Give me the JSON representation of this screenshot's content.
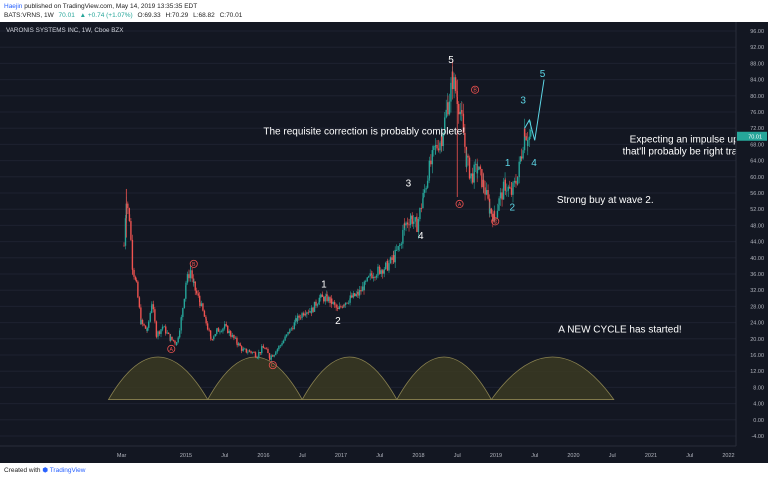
{
  "header": {
    "line1_user": "Haejin",
    "line1_rest": " published on TradingView.com, May 14, 2019 13:35:35 EDT",
    "symbol": "BATS:VRNS, 1W",
    "last": "70.01",
    "change": "▲ +0.74 (+1.07%)",
    "open": "O:69.33",
    "high": "H:70.29",
    "low": "L:68.82",
    "close": "C:70.01"
  },
  "footer": {
    "created_with": "Created with",
    "brand": "TradingView"
  },
  "colors": {
    "background": "#131722",
    "up": "#26a69a",
    "down": "#ef5350",
    "wave_cyan": "#5dd6e6",
    "cycle_fill": "#3b3a22",
    "cycle_stroke": "#8a8250"
  },
  "chart_data": {
    "type": "candlestick",
    "title": "VARONIS SYSTEMS INC, 1W, Cboe BZX",
    "y_ticks": [
      "96.00",
      "92.00",
      "88.00",
      "84.00",
      "80.00",
      "76.00",
      "72.00",
      "68.00",
      "64.00",
      "60.00",
      "56.00",
      "52.00",
      "48.00",
      "44.00",
      "40.00",
      "36.00",
      "32.00",
      "28.00",
      "24.00",
      "20.00",
      "16.00",
      "12.00",
      "8.00",
      "4.00",
      "0.00",
      "-4.00"
    ],
    "ylim": [
      -6,
      98
    ],
    "x_ticks": [
      "Mar",
      "2015",
      "Jul",
      "2016",
      "Jul",
      "2017",
      "Jul",
      "2018",
      "Jul",
      "2019",
      "Jul",
      "2020",
      "Jul",
      "2021",
      "Jul",
      "2022"
    ],
    "last_price": "70.01",
    "price_path": [
      [
        2014.2,
        43
      ],
      [
        2014.23,
        55
      ],
      [
        2014.27,
        50
      ],
      [
        2014.31,
        38
      ],
      [
        2014.36,
        33
      ],
      [
        2014.42,
        24
      ],
      [
        2014.5,
        22
      ],
      [
        2014.56,
        29
      ],
      [
        2014.62,
        21
      ],
      [
        2014.7,
        23
      ],
      [
        2014.8,
        20
      ],
      [
        2014.88,
        19
      ],
      [
        2014.94,
        25
      ],
      [
        2015.0,
        34
      ],
      [
        2015.06,
        37
      ],
      [
        2015.1,
        33
      ],
      [
        2015.18,
        29
      ],
      [
        2015.26,
        24
      ],
      [
        2015.32,
        20
      ],
      [
        2015.4,
        22
      ],
      [
        2015.5,
        23
      ],
      [
        2015.58,
        21
      ],
      [
        2015.66,
        19
      ],
      [
        2015.74,
        17
      ],
      [
        2015.82,
        17
      ],
      [
        2015.92,
        16
      ],
      [
        2016.0,
        18
      ],
      [
        2016.08,
        15.5
      ],
      [
        2016.16,
        17
      ],
      [
        2016.24,
        19
      ],
      [
        2016.34,
        22
      ],
      [
        2016.44,
        25
      ],
      [
        2016.54,
        27
      ],
      [
        2016.62,
        27
      ],
      [
        2016.72,
        30
      ],
      [
        2016.82,
        30
      ],
      [
        2016.88,
        29
      ],
      [
        2016.96,
        27
      ],
      [
        2017.04,
        29
      ],
      [
        2017.12,
        30
      ],
      [
        2017.22,
        31
      ],
      [
        2017.3,
        33
      ],
      [
        2017.4,
        36
      ],
      [
        2017.5,
        37
      ],
      [
        2017.6,
        38
      ],
      [
        2017.68,
        40
      ],
      [
        2017.76,
        43
      ],
      [
        2017.82,
        48
      ],
      [
        2017.9,
        50
      ],
      [
        2017.98,
        48
      ],
      [
        2018.06,
        55
      ],
      [
        2018.14,
        62
      ],
      [
        2018.22,
        67
      ],
      [
        2018.3,
        70
      ],
      [
        2018.38,
        78
      ],
      [
        2018.44,
        84
      ],
      [
        2018.5,
        80
      ],
      [
        2018.56,
        74
      ],
      [
        2018.62,
        64
      ],
      [
        2018.68,
        60
      ],
      [
        2018.76,
        62
      ],
      [
        2018.84,
        58
      ],
      [
        2018.92,
        52
      ],
      [
        2018.98,
        50
      ],
      [
        2019.04,
        54
      ],
      [
        2019.12,
        58
      ],
      [
        2019.2,
        56
      ],
      [
        2019.28,
        60
      ],
      [
        2019.33,
        66
      ],
      [
        2019.37,
        72
      ],
      [
        2019.41,
        69
      ],
      [
        2019.45,
        70
      ]
    ],
    "wave_labels": [
      {
        "label": "1",
        "x": 2016.78,
        "y": 33.5,
        "color": "white"
      },
      {
        "label": "2",
        "x": 2016.96,
        "y": 24.5,
        "color": "white"
      },
      {
        "label": "3",
        "x": 2017.87,
        "y": 58.5,
        "color": "white"
      },
      {
        "label": "4",
        "x": 2018.03,
        "y": 45.5,
        "color": "white"
      },
      {
        "label": "5",
        "x": 2018.42,
        "y": 89,
        "color": "white"
      },
      {
        "label": "A",
        "x": 2014.81,
        "y": 17.5,
        "color": "red"
      },
      {
        "label": "B",
        "x": 2015.1,
        "y": 38.5,
        "color": "red"
      },
      {
        "label": "C",
        "x": 2016.12,
        "y": 13.5,
        "color": "red"
      },
      {
        "label": "A",
        "x": 2018.53,
        "y": 53.3,
        "color": "red"
      },
      {
        "label": "B",
        "x": 2018.73,
        "y": 81.5,
        "color": "red"
      },
      {
        "label": "C",
        "x": 2018.99,
        "y": 49,
        "color": "red"
      },
      {
        "label": "1",
        "x": 2019.15,
        "y": 63.5,
        "color": "cyan"
      },
      {
        "label": "2",
        "x": 2019.21,
        "y": 52.5,
        "color": "cyan"
      },
      {
        "label": "3",
        "x": 2019.35,
        "y": 79,
        "color": "cyan"
      },
      {
        "label": "4",
        "x": 2019.49,
        "y": 63.5,
        "color": "cyan"
      },
      {
        "label": "5",
        "x": 2019.6,
        "y": 85.5,
        "color": "cyan"
      }
    ],
    "projection": [
      [
        2019.37,
        72
      ],
      [
        2019.43,
        74
      ],
      [
        2019.5,
        69
      ],
      [
        2019.62,
        84
      ]
    ],
    "cycle_arcs": [
      [
        2014.0,
        2015.28
      ],
      [
        2015.28,
        2016.5
      ],
      [
        2016.5,
        2017.72
      ],
      [
        2017.72,
        2018.94
      ],
      [
        2018.94,
        2020.52
      ]
    ],
    "cycle_peak": 15.5,
    "cycle_base": 5,
    "annotations": [
      {
        "text": "The requisite correction is probably complete!",
        "x": 2017.3,
        "y": 70.5
      },
      {
        "text": "Expecting an impulse upwards",
        "x": 2021.6,
        "y": 68.5
      },
      {
        "text": "that'll probably be right translated.",
        "x": 2021.6,
        "y": 65.5
      },
      {
        "text": "Strong buy at wave 2.",
        "x": 2020.41,
        "y": 53.5
      },
      {
        "text": "A NEW CYCLE has started!",
        "x": 2020.6,
        "y": 21.5
      }
    ]
  }
}
